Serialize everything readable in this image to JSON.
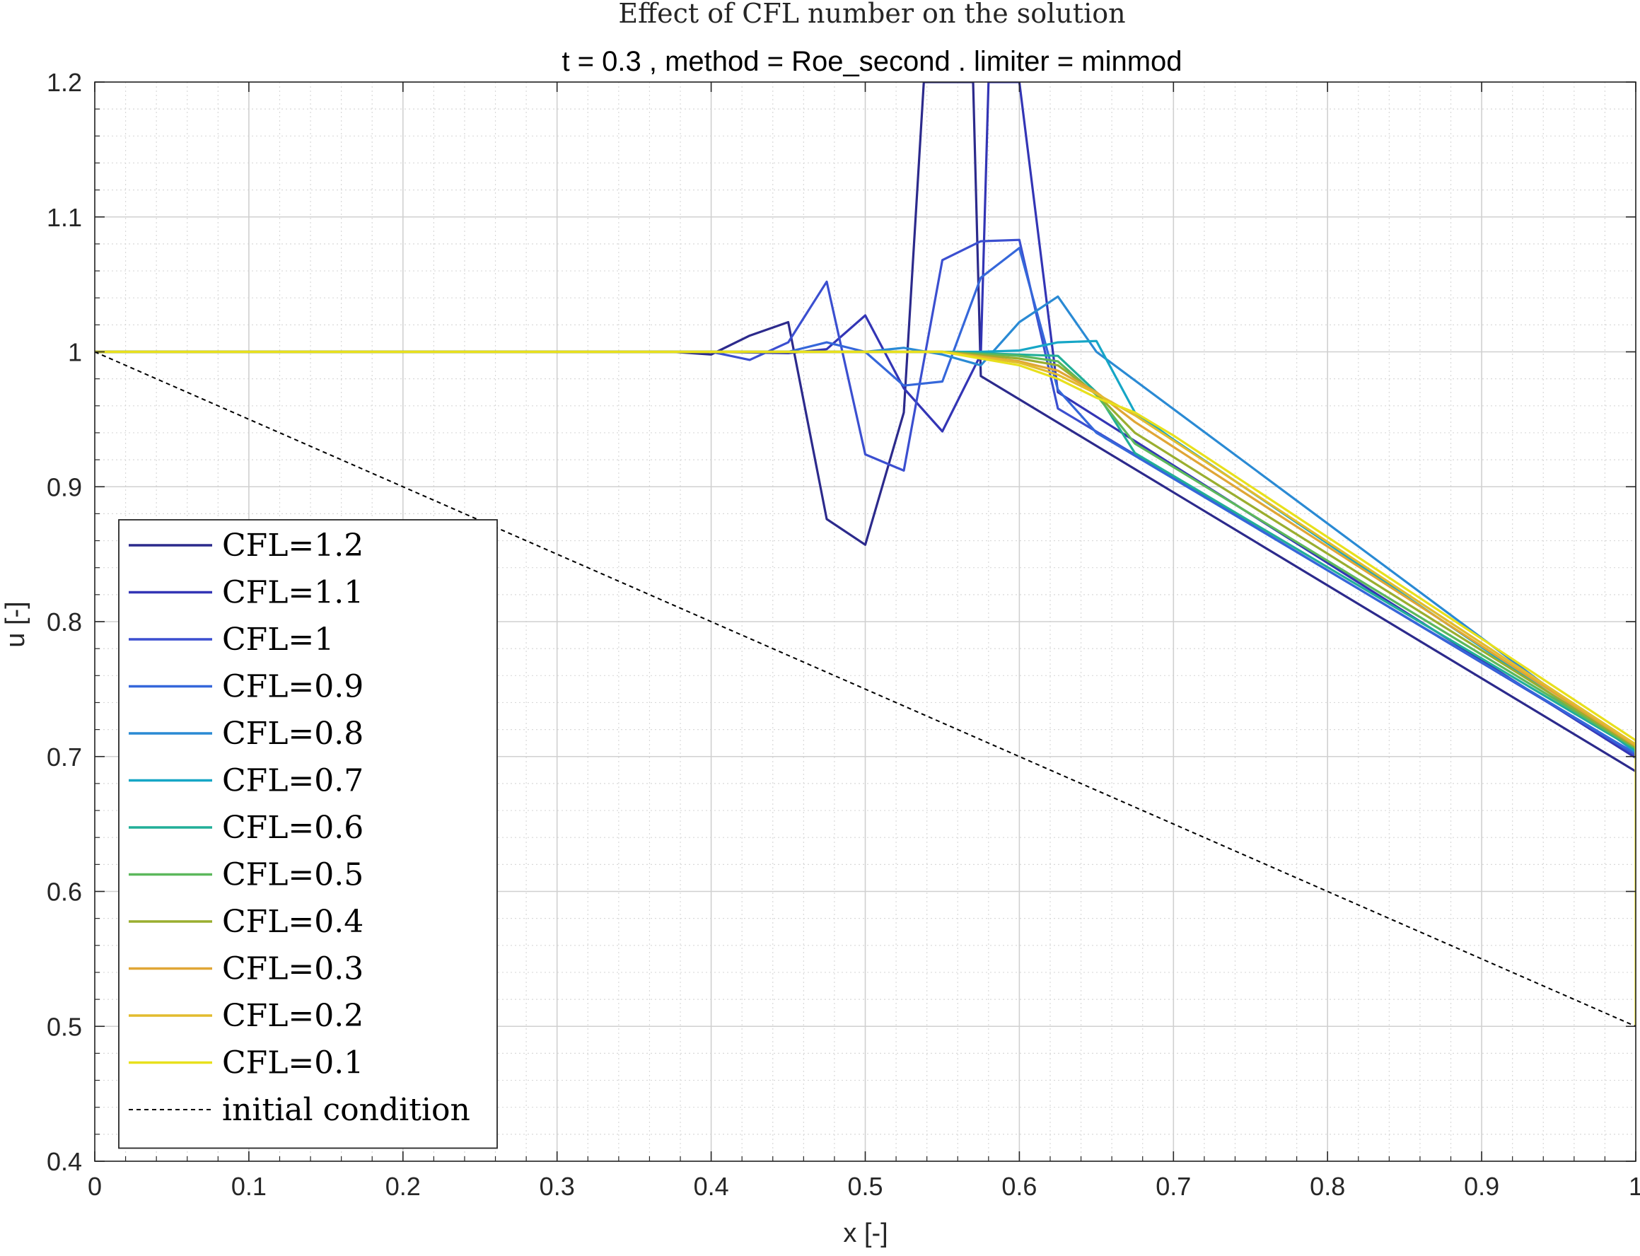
{
  "chart_data": {
    "type": "line",
    "title": "Effect of CFL number on the solution",
    "subtitle": "t = 0.3 , method = Roe_second . limiter = minmod",
    "xlabel": "x [-]",
    "ylabel": "u [-]",
    "xlim": [
      0,
      1
    ],
    "ylim": [
      0.4,
      1.2
    ],
    "xticks": [
      0,
      0.1,
      0.2,
      0.3,
      0.4,
      0.5,
      0.6,
      0.7,
      0.8,
      0.9,
      1
    ],
    "yticks": [
      0.4,
      0.5,
      0.6,
      0.7,
      0.8,
      0.9,
      1,
      1.1,
      1.2
    ],
    "xtick_labels": [
      "0",
      "0.1",
      "0.2",
      "0.3",
      "0.4",
      "0.5",
      "0.6",
      "0.7",
      "0.8",
      "0.9",
      "1"
    ],
    "ytick_labels": [
      "0.4",
      "0.5",
      "0.6",
      "0.7",
      "0.8",
      "0.9",
      "1",
      "1.1",
      "1.2"
    ],
    "grid": true,
    "minor_grid": true,
    "legend_position": "bottom-left",
    "series": [
      {
        "name": "CFL=1.2",
        "color": "#2c2a8c",
        "style": "solid",
        "x": [
          0,
          0.375,
          0.4,
          0.425,
          0.45,
          0.475,
          0.5,
          0.525,
          0.538,
          0.555,
          0.57,
          0.575,
          1.0
        ],
        "y": [
          1,
          1,
          0.998,
          1.012,
          1.022,
          0.876,
          0.857,
          0.955,
          1.2,
          1.2,
          1.2,
          0.982,
          0.689
        ]
      },
      {
        "name": "CFL=1.1",
        "color": "#3335b5",
        "style": "solid",
        "x": [
          0,
          0.4,
          0.45,
          0.475,
          0.5,
          0.525,
          0.55,
          0.575,
          0.58,
          0.6,
          0.625,
          1.0
        ],
        "y": [
          1,
          1,
          0.999,
          1.002,
          1.027,
          0.973,
          0.941,
          0.998,
          1.2,
          1.2,
          0.97,
          0.699
        ]
      },
      {
        "name": "CFL=1",
        "color": "#3b4fd0",
        "style": "solid",
        "x": [
          0,
          0.4,
          0.425,
          0.45,
          0.475,
          0.5,
          0.525,
          0.55,
          0.575,
          0.6,
          0.625,
          1.0
        ],
        "y": [
          1,
          1,
          0.994,
          1.007,
          1.052,
          0.924,
          0.912,
          1.068,
          1.082,
          1.083,
          0.958,
          0.701
        ]
      },
      {
        "name": "CFL=0.9",
        "color": "#3567da",
        "style": "solid",
        "x": [
          0,
          0.45,
          0.475,
          0.5,
          0.525,
          0.55,
          0.575,
          0.6,
          0.625,
          0.65,
          1.0
        ],
        "y": [
          1,
          1,
          1.007,
          1.0,
          0.975,
          0.978,
          1.055,
          1.077,
          0.972,
          0.94,
          0.702
        ]
      },
      {
        "name": "CFL=0.8",
        "color": "#2a8ad4",
        "style": "solid",
        "x": [
          0,
          0.5,
          0.525,
          0.55,
          0.575,
          0.6,
          0.625,
          0.65,
          1.0
        ],
        "y": [
          1,
          1,
          1.003,
          0.998,
          0.99,
          1.022,
          1.041,
          1.0,
          0.703
        ]
      },
      {
        "name": "CFL=0.7",
        "color": "#16a6c6",
        "style": "solid",
        "x": [
          0,
          0.55,
          0.575,
          0.6,
          0.625,
          0.65,
          0.675,
          0.7,
          1.0
        ],
        "y": [
          1,
          1,
          1.0,
          1.001,
          1.007,
          1.008,
          0.955,
          0.935,
          0.704
        ]
      },
      {
        "name": "CFL=0.6",
        "color": "#21ae98",
        "style": "solid",
        "x": [
          0,
          0.55,
          0.6,
          0.625,
          0.65,
          0.675,
          1.0
        ],
        "y": [
          1,
          1,
          0.998,
          0.997,
          0.97,
          0.925,
          0.705
        ]
      },
      {
        "name": "CFL=0.5",
        "color": "#5cb85c",
        "style": "solid",
        "x": [
          0,
          0.55,
          0.6,
          0.625,
          0.65,
          0.675,
          1.0
        ],
        "y": [
          1,
          1,
          0.997,
          0.993,
          0.968,
          0.932,
          0.706
        ]
      },
      {
        "name": "CFL=0.4",
        "color": "#9aae2f",
        "style": "solid",
        "x": [
          0,
          0.55,
          0.6,
          0.625,
          0.65,
          0.675,
          1.0
        ],
        "y": [
          1,
          1,
          0.995,
          0.99,
          0.969,
          0.94,
          0.707
        ]
      },
      {
        "name": "CFL=0.3",
        "color": "#e0a636",
        "style": "solid",
        "x": [
          0,
          0.55,
          0.6,
          0.625,
          0.65,
          0.675,
          1.0
        ],
        "y": [
          1,
          1,
          0.993,
          0.986,
          0.97,
          0.948,
          0.708
        ]
      },
      {
        "name": "CFL=0.2",
        "color": "#e2bc2e",
        "style": "solid",
        "x": [
          0,
          0.55,
          0.6,
          0.625,
          0.65,
          0.675,
          1.0
        ],
        "y": [
          1,
          1,
          0.992,
          0.983,
          0.969,
          0.953,
          0.709
        ]
      },
      {
        "name": "CFL=0.1",
        "color": "#e8e01c",
        "style": "solid",
        "x": [
          0,
          0.55,
          0.6,
          0.625,
          0.65,
          0.675,
          0.7,
          1.0,
          1.0
        ],
        "y": [
          1,
          1,
          0.99,
          0.98,
          0.966,
          0.955,
          0.938,
          0.712,
          0.5
        ]
      },
      {
        "name": "initial condition",
        "color": "#000000",
        "style": "dashed",
        "x": [
          0,
          1
        ],
        "y": [
          1,
          0.5
        ]
      }
    ]
  }
}
